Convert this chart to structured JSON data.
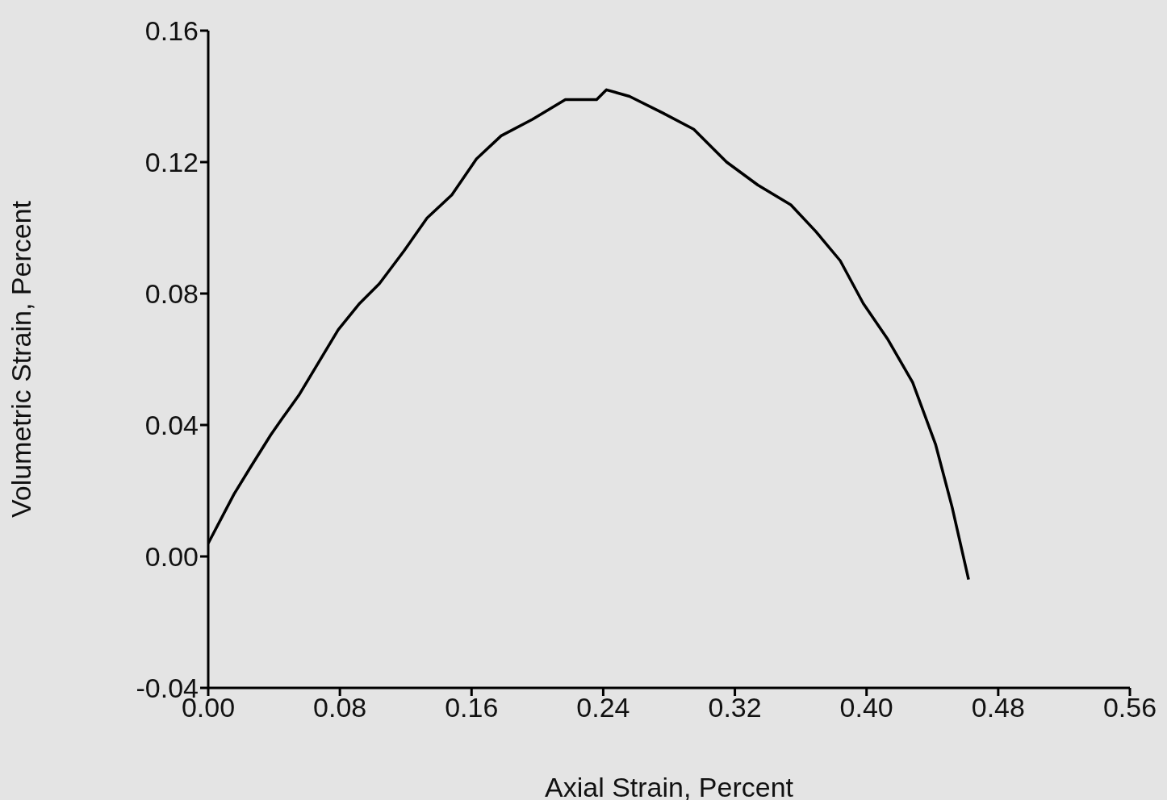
{
  "chart_data": {
    "type": "line",
    "xlabel": "Axial Strain, Percent",
    "ylabel": "Volumetric Strain, Percent",
    "x": [
      0,
      0.0157,
      0.0255,
      0.038,
      0.045,
      0.055,
      0.067,
      0.079,
      0.092,
      0.104,
      0.119,
      0.133,
      0.148,
      0.163,
      0.178,
      0.197,
      0.217,
      0.236,
      0.242,
      0.256,
      0.276,
      0.295,
      0.315,
      0.334,
      0.354,
      0.369,
      0.384,
      0.398,
      0.413,
      0.428,
      0.442,
      0.452,
      0.462
    ],
    "series": [
      {
        "color": "#000000",
        "values": [
          0.004,
          0.019,
          0.027,
          0.037,
          0.042,
          0.049,
          0.059,
          0.069,
          0.077,
          0.083,
          0.093,
          0.103,
          0.11,
          0.121,
          0.128,
          0.133,
          0.139,
          0.139,
          0.142,
          0.14,
          0.135,
          0.13,
          0.12,
          0.113,
          0.107,
          0.099,
          0.09,
          0.077,
          0.066,
          0.053,
          0.034,
          0.015,
          -0.007
        ]
      }
    ],
    "xlim": [
      0,
      0.56
    ],
    "xticks": [
      {
        "value": 0,
        "label": "0.00"
      },
      0.08,
      0.16,
      0.24,
      0.32,
      {
        "value": 0.4,
        "label": "0.40"
      },
      0.48,
      0.56
    ],
    "ylim": [
      -0.04,
      0.16
    ],
    "yticks": [
      -0.04,
      {
        "value": 0,
        "label": "0.00"
      },
      0.04,
      0.08,
      0.12,
      0.16
    ],
    "grid": false,
    "legend": false,
    "marker": "none",
    "line_style": "solid"
  }
}
